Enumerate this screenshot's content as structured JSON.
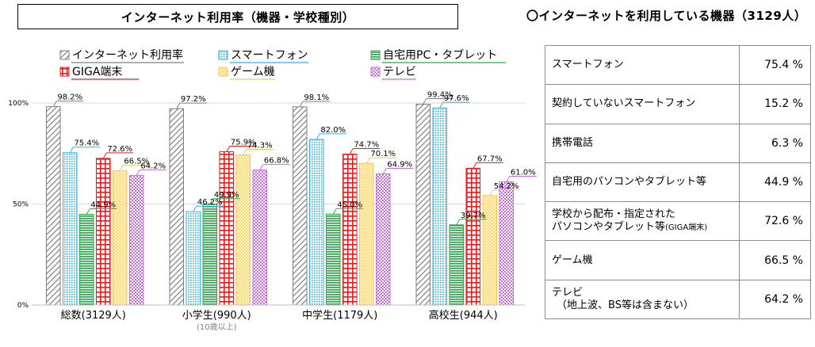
{
  "left_title": "インターネット利用率（機器・学校種別）",
  "right_title": "〇インターネットを利用している機器（3129人）",
  "colors": {
    "internet": "#7f7f7f",
    "smartphone": "#33b3e0",
    "pc_tablet": "#2ea84a",
    "giga": "#e02020",
    "game": "#f2c85c",
    "tv": "#c96fd8"
  },
  "chart_data": {
    "type": "bar",
    "categories": [
      "総数(3129人)",
      "小学生(990人)",
      "中学生(1179人)",
      "高校生(944人)"
    ],
    "category_sublabels": [
      "",
      "(10歳以上)",
      "",
      ""
    ],
    "ylim": [
      0,
      100
    ],
    "yticks": [
      0,
      50,
      100
    ],
    "ytick_labels": [
      "0%",
      "50%",
      "100%"
    ],
    "legend": "top",
    "grid": true,
    "series": [
      {
        "name": "インターネット利用率",
        "key": "internet",
        "values": [
          98.2,
          97.2,
          98.1,
          99.4
        ],
        "labels": [
          "98.2%",
          "97.2%",
          "98.1%",
          "99.4%"
        ]
      },
      {
        "name": "スマートフォン",
        "key": "smartphone",
        "values": [
          75.4,
          46.2,
          82.0,
          97.6
        ],
        "labels": [
          "75.4%",
          "46.2%",
          "82.0%",
          "97.6%"
        ]
      },
      {
        "name": "自宅用PC・タブレット",
        "key": "pc_tablet",
        "values": [
          44.9,
          49.9,
          45.0,
          39.7
        ],
        "labels": [
          "44.9%",
          "49.9%",
          "45.0%",
          "39.7%"
        ]
      },
      {
        "name": "GIGA端末",
        "key": "giga",
        "values": [
          72.6,
          75.9,
          74.7,
          67.7
        ],
        "labels": [
          "72.6%",
          "75.9%",
          "74.7%",
          "67.7%"
        ]
      },
      {
        "name": "ゲーム機",
        "key": "game",
        "values": [
          66.5,
          74.3,
          70.1,
          54.2
        ],
        "labels": [
          "66.5%",
          "74.3%",
          "70.1%",
          "54.2%"
        ]
      },
      {
        "name": "テレビ",
        "key": "tv",
        "values": [
          64.2,
          66.8,
          64.9,
          61.0
        ],
        "labels": [
          "64.2%",
          "66.8%",
          "64.9%",
          "61.0%"
        ]
      }
    ]
  },
  "device_table": {
    "rows": [
      {
        "label": [
          "スマートフォン"
        ],
        "value": "75.4 %"
      },
      {
        "label": [
          "契約していないスマートフォン"
        ],
        "value": "15.2 %"
      },
      {
        "label": [
          "携帯電話"
        ],
        "value": "6.3 %"
      },
      {
        "label": [
          "自宅用のパソコンやタブレット等"
        ],
        "value": "44.9 %"
      },
      {
        "label": [
          "学校から配布・指定された",
          "パソコンやタブレット等",
          "(GIGA端末)"
        ],
        "value": "72.6 %"
      },
      {
        "label": [
          "ゲーム機"
        ],
        "value": "66.5 %"
      },
      {
        "label": [
          "テレビ",
          "（地上波、BS等は含まない）"
        ],
        "value": "64.2 %"
      }
    ]
  }
}
